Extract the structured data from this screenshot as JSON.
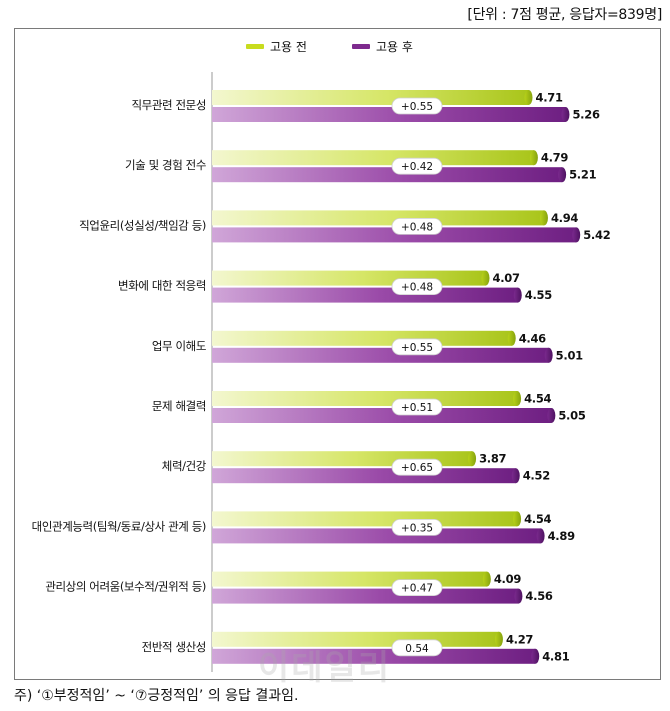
{
  "unit_note": "[단위 : 7점 평균, 응답자=839명]",
  "footnote": "주) ‘①부정적임’ ~ ‘⑦긍정적임’ 의 응답 결과임.",
  "watermark": "이데일리",
  "colors": {
    "before": "#c8dc1e",
    "after": "#7e2a8e"
  },
  "chart_data": {
    "type": "bar",
    "orientation": "horizontal",
    "title": "",
    "legend": {
      "placement": "top-center",
      "entries": [
        "고용 전",
        "고용 후"
      ]
    },
    "categories": [
      "직무관련 전문성",
      "기술 및 경험 전수",
      "직업윤리(성실성/책임감 등)",
      "변화에 대한 적응력",
      "업무 이해도",
      "문제 해결력",
      "체력/건강",
      "대인관계능력(팀웍/동료/상사 관계 등)",
      "관리상의 어려움(보수적/권위적 등)",
      "전반적 생산성"
    ],
    "series": [
      {
        "name": "고용 전",
        "values": [
          4.71,
          4.79,
          4.94,
          4.07,
          4.46,
          4.54,
          3.87,
          4.54,
          4.09,
          4.27
        ],
        "labels": [
          "4.71",
          "4.79",
          "4.94",
          "4.07",
          "4.46",
          "4.54",
          "3.87",
          "4.54",
          "4.09",
          "4.27"
        ]
      },
      {
        "name": "고용 후",
        "values": [
          5.26,
          5.21,
          5.42,
          4.55,
          5.01,
          5.05,
          4.52,
          4.89,
          4.56,
          4.81
        ],
        "labels": [
          "5.26",
          "5.21",
          "5.42",
          "4.55",
          "5.01",
          "5.05",
          "4.52",
          "4.89",
          "4.56",
          "4.81"
        ]
      }
    ],
    "differences": [
      "+0.55",
      "+0.42",
      "+0.48",
      "+0.48",
      "+0.55",
      "+0.51",
      "+0.65",
      "+0.35",
      "+0.47",
      "0.54"
    ],
    "xlim": [
      0,
      6.25
    ],
    "grid": false
  }
}
